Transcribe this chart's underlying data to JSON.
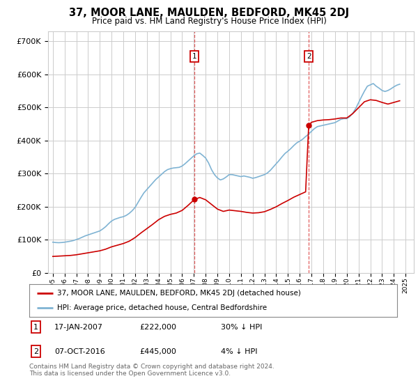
{
  "title": "37, MOOR LANE, MAULDEN, BEDFORD, MK45 2DJ",
  "subtitle": "Price paid vs. HM Land Registry's House Price Index (HPI)",
  "ylabel_ticks": [
    "£0",
    "£100K",
    "£200K",
    "£300K",
    "£400K",
    "£500K",
    "£600K",
    "£700K"
  ],
  "ytick_values": [
    0,
    100000,
    200000,
    300000,
    400000,
    500000,
    600000,
    700000
  ],
  "ylim": [
    0,
    730000
  ],
  "xlim_start": 1994.6,
  "xlim_end": 2025.7,
  "transaction1_date": 2007.04,
  "transaction1_price": 222000,
  "transaction1_label": "1",
  "transaction1_date_str": "17-JAN-2007",
  "transaction1_price_str": "£222,000",
  "transaction1_hpi_str": "30% ↓ HPI",
  "transaction2_date": 2016.76,
  "transaction2_price": 445000,
  "transaction2_label": "2",
  "transaction2_date_str": "07-OCT-2016",
  "transaction2_price_str": "£445,000",
  "transaction2_hpi_str": "4% ↓ HPI",
  "legend_line1": "37, MOOR LANE, MAULDEN, BEDFORD, MK45 2DJ (detached house)",
  "legend_line2": "HPI: Average price, detached house, Central Bedfordshire",
  "footer": "Contains HM Land Registry data © Crown copyright and database right 2024.\nThis data is licensed under the Open Government Licence v3.0.",
  "line_color_red": "#cc0000",
  "line_color_blue": "#7fb3d3",
  "vline_color": "#dd4444",
  "grid_color": "#cccccc",
  "bg": "#ffffff",
  "hpi_x": [
    1995.0,
    1995.25,
    1995.5,
    1995.75,
    1996.0,
    1996.25,
    1996.5,
    1996.75,
    1997.0,
    1997.25,
    1997.5,
    1997.75,
    1998.0,
    1998.25,
    1998.5,
    1998.75,
    1999.0,
    1999.25,
    1999.5,
    1999.75,
    2000.0,
    2000.25,
    2000.5,
    2000.75,
    2001.0,
    2001.25,
    2001.5,
    2001.75,
    2002.0,
    2002.25,
    2002.5,
    2002.75,
    2003.0,
    2003.25,
    2003.5,
    2003.75,
    2004.0,
    2004.25,
    2004.5,
    2004.75,
    2005.0,
    2005.25,
    2005.5,
    2005.75,
    2006.0,
    2006.25,
    2006.5,
    2006.75,
    2007.0,
    2007.25,
    2007.5,
    2007.75,
    2008.0,
    2008.25,
    2008.5,
    2008.75,
    2009.0,
    2009.25,
    2009.5,
    2009.75,
    2010.0,
    2010.25,
    2010.5,
    2010.75,
    2011.0,
    2011.25,
    2011.5,
    2011.75,
    2012.0,
    2012.25,
    2012.5,
    2012.75,
    2013.0,
    2013.25,
    2013.5,
    2013.75,
    2014.0,
    2014.25,
    2014.5,
    2014.75,
    2015.0,
    2015.25,
    2015.5,
    2015.75,
    2016.0,
    2016.25,
    2016.5,
    2016.75,
    2017.0,
    2017.25,
    2017.5,
    2017.75,
    2018.0,
    2018.25,
    2018.5,
    2018.75,
    2019.0,
    2019.25,
    2019.5,
    2019.75,
    2020.0,
    2020.25,
    2020.5,
    2020.75,
    2021.0,
    2021.25,
    2021.5,
    2021.75,
    2022.0,
    2022.25,
    2022.5,
    2022.75,
    2023.0,
    2023.25,
    2023.5,
    2023.75,
    2024.0,
    2024.25,
    2024.5
  ],
  "hpi_y": [
    93000,
    92000,
    91500,
    92000,
    93000,
    94500,
    96000,
    98000,
    101000,
    104000,
    108000,
    112000,
    115000,
    118000,
    121000,
    124000,
    127000,
    133000,
    140000,
    149000,
    157000,
    162000,
    165000,
    168000,
    170000,
    174000,
    180000,
    188000,
    198000,
    213000,
    228000,
    242000,
    252000,
    262000,
    272000,
    282000,
    290000,
    298000,
    306000,
    312000,
    315000,
    317000,
    318000,
    319000,
    323000,
    330000,
    338000,
    346000,
    354000,
    360000,
    362000,
    355000,
    347000,
    332000,
    312000,
    297000,
    287000,
    281000,
    284000,
    290000,
    297000,
    297000,
    295000,
    293000,
    291000,
    293000,
    291000,
    289000,
    286000,
    288000,
    291000,
    294000,
    297000,
    302000,
    310000,
    320000,
    330000,
    340000,
    351000,
    361000,
    368000,
    376000,
    385000,
    393000,
    398000,
    404000,
    412000,
    419000,
    428000,
    436000,
    442000,
    444000,
    446000,
    448000,
    450000,
    452000,
    454000,
    459000,
    464000,
    466000,
    466000,
    472000,
    482000,
    496000,
    514000,
    532000,
    549000,
    564000,
    568000,
    572000,
    564000,
    558000,
    551000,
    548000,
    551000,
    556000,
    562000,
    567000,
    570000
  ],
  "price_x": [
    1995.0,
    1995.5,
    1996.0,
    1996.5,
    1997.0,
    1997.5,
    1998.0,
    1998.5,
    1999.0,
    1999.5,
    2000.0,
    2000.5,
    2001.0,
    2001.5,
    2002.0,
    2002.5,
    2003.0,
    2003.5,
    2004.0,
    2004.5,
    2005.0,
    2005.5,
    2006.0,
    2006.5,
    2007.04,
    2007.5,
    2008.0,
    2008.5,
    2009.0,
    2009.5,
    2010.0,
    2010.5,
    2011.0,
    2011.5,
    2012.0,
    2012.5,
    2013.0,
    2013.5,
    2014.0,
    2014.5,
    2015.0,
    2015.5,
    2016.0,
    2016.5,
    2016.76,
    2017.0,
    2017.5,
    2018.0,
    2018.5,
    2019.0,
    2019.5,
    2020.0,
    2020.5,
    2021.0,
    2021.5,
    2022.0,
    2022.5,
    2023.0,
    2023.5,
    2024.0,
    2024.5
  ],
  "price_y": [
    50000,
    51000,
    52000,
    53000,
    55000,
    58000,
    61000,
    64000,
    67000,
    72000,
    79000,
    84000,
    89000,
    96000,
    107000,
    121000,
    134000,
    147000,
    161000,
    171000,
    177000,
    181000,
    189000,
    204000,
    222000,
    228000,
    221000,
    207000,
    193000,
    186000,
    190000,
    188000,
    186000,
    183000,
    181000,
    182000,
    185000,
    192000,
    200000,
    210000,
    219000,
    229000,
    237000,
    245000,
    445000,
    455000,
    460000,
    462000,
    463000,
    465000,
    468000,
    468000,
    481000,
    499000,
    517000,
    523000,
    521000,
    515000,
    510000,
    515000,
    520000
  ]
}
